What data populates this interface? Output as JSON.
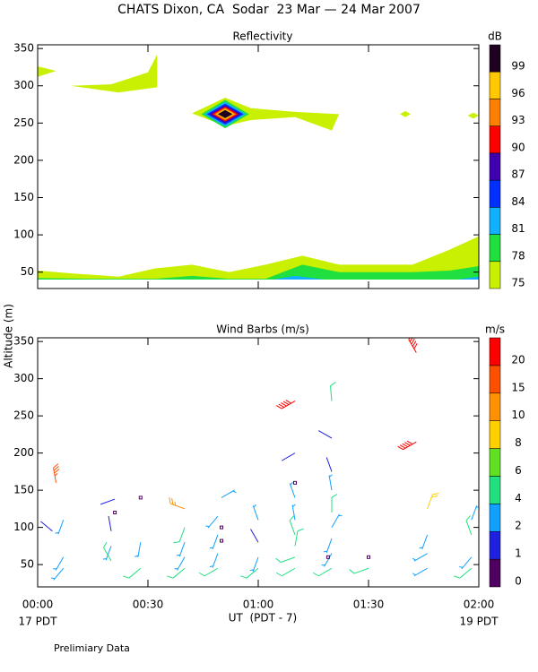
{
  "title": "CHATS Dixon, CA  Sodar  23 Mar — 24 Mar 2007",
  "y_label": "Altitude (m)",
  "x_label": "UT  (PDT - 7)",
  "start_label": "17 PDT",
  "end_label": "19 PDT",
  "footnote": "Prelimiary Data",
  "chart_data": [
    {
      "type": "contour",
      "title": "Reflectivity",
      "colorbar_unit": "dB",
      "levels": [
        75,
        78,
        81,
        84,
        87,
        90,
        93,
        96,
        99
      ],
      "colors": [
        "#c8f000",
        "#20e040",
        "#10b0ff",
        "#0030ff",
        "#4000b0",
        "#ff0000",
        "#ff8000",
        "#ffc800",
        "#200020"
      ],
      "xlim": [
        0,
        120
      ],
      "ylim": [
        28,
        355
      ],
      "xticks": [
        0,
        30,
        60,
        90,
        120
      ],
      "yticks": [
        50,
        100,
        150,
        200,
        250,
        300,
        350
      ],
      "regions": [
        {
          "level": 75,
          "x": [
            0,
            10,
            22,
            32,
            42,
            52,
            62,
            72,
            82,
            92,
            102,
            112,
            120,
            120,
            0
          ],
          "y": [
            52,
            48,
            44,
            55,
            60,
            50,
            60,
            72,
            60,
            60,
            60,
            80,
            98,
            40,
            40
          ]
        },
        {
          "level": 78,
          "x": [
            0,
            15,
            32,
            42,
            52,
            62,
            72,
            82,
            102,
            112,
            120,
            120,
            0
          ],
          "y": [
            42,
            41,
            41,
            45,
            41,
            41,
            60,
            50,
            50,
            52,
            58,
            40,
            40
          ]
        },
        {
          "level": 81,
          "x": [
            64,
            70,
            78
          ],
          "y": [
            40,
            45,
            40
          ]
        },
        {
          "level": 81,
          "x": [
            114,
            120,
            120
          ],
          "y": [
            40,
            44,
            40
          ]
        },
        {
          "level": 75,
          "x": [
            0,
            5,
            0
          ],
          "y": [
            326,
            320,
            312
          ]
        },
        {
          "level": 75,
          "x": [
            9,
            20,
            30,
            32.5,
            32.5,
            22
          ],
          "y": [
            300,
            302,
            318,
            342,
            298,
            291
          ]
        },
        {
          "level": 75,
          "x": [
            42,
            51,
            58,
            70,
            82,
            80,
            70,
            58,
            51
          ],
          "y": [
            263,
            284,
            270,
            265,
            262,
            240,
            258,
            254,
            246
          ]
        },
        {
          "level": 78,
          "x": [
            44.5,
            51,
            57.5,
            51
          ],
          "y": [
            262,
            281,
            262,
            243
          ]
        },
        {
          "level": 81,
          "x": [
            45.3,
            51,
            56.7,
            51
          ],
          "y": [
            262,
            278.5,
            262,
            245.5
          ]
        },
        {
          "level": 84,
          "x": [
            46,
            51,
            56,
            51
          ],
          "y": [
            262,
            276,
            262,
            248
          ]
        },
        {
          "level": 87,
          "x": [
            46.7,
            51,
            55.3,
            51
          ],
          "y": [
            262,
            274,
            262,
            250
          ]
        },
        {
          "level": 90,
          "x": [
            47.4,
            51,
            54.6,
            51
          ],
          "y": [
            262,
            272,
            262,
            252
          ]
        },
        {
          "level": 93,
          "x": [
            48,
            51,
            54,
            51
          ],
          "y": [
            262,
            270.5,
            262,
            253.5
          ]
        },
        {
          "level": 96,
          "x": [
            48.5,
            51,
            53.5,
            51
          ],
          "y": [
            262,
            269,
            262,
            255
          ]
        },
        {
          "level": 99,
          "x": [
            49,
            51,
            53,
            51
          ],
          "y": [
            262,
            267.5,
            262,
            256.5
          ]
        },
        {
          "level": 75,
          "x": [
            98.5,
            100,
            101.5,
            100
          ],
          "y": [
            262,
            266,
            262,
            258
          ]
        },
        {
          "level": 75,
          "x": [
            117,
            118.5,
            120,
            118.5
          ],
          "y": [
            260,
            264,
            260,
            256
          ]
        }
      ]
    },
    {
      "type": "barbs",
      "title": "Wind Barbs (m/s)",
      "colorbar_unit": "m/s",
      "levels": [
        0,
        1,
        2,
        4,
        6,
        8,
        10,
        15,
        20
      ],
      "colors": [
        "#500060",
        "#2020e0",
        "#10a0ff",
        "#20e080",
        "#60e020",
        "#ffd000",
        "#ff9000",
        "#ff5000",
        "#ff0000"
      ],
      "xlim": [
        0,
        120
      ],
      "ylim": [
        20,
        355
      ],
      "xticks": [
        {
          "value": 0,
          "label": "00:00"
        },
        {
          "value": 30,
          "label": "00:30"
        },
        {
          "value": 60,
          "label": "01:00"
        },
        {
          "value": 90,
          "label": "01:30"
        },
        {
          "value": 120,
          "label": "02:00"
        }
      ],
      "yticks": [
        50,
        100,
        150,
        200,
        250,
        300,
        350
      ],
      "x": [
        5,
        4,
        7,
        7,
        7,
        21,
        21,
        20,
        20,
        20,
        28,
        28,
        28,
        40,
        40,
        40,
        40,
        40,
        50,
        50,
        50,
        49,
        49,
        49,
        49,
        60,
        60,
        60,
        60,
        70,
        70,
        70,
        70,
        70,
        70,
        70,
        70,
        70,
        80,
        80,
        80,
        80,
        80,
        80,
        80,
        80,
        80,
        79,
        90,
        90,
        103,
        103,
        106,
        106,
        106,
        106,
        118,
        118,
        118,
        118
      ],
      "y": [
        160,
        95,
        110,
        60,
        45,
        138,
        120,
        95,
        75,
        55,
        140,
        80,
        45,
        125,
        100,
        80,
        60,
        45,
        140,
        100,
        82,
        115,
        90,
        65,
        45,
        110,
        80,
        60,
        45,
        270,
        200,
        160,
        140,
        110,
        90,
        75,
        60,
        45,
        270,
        220,
        175,
        150,
        120,
        100,
        85,
        65,
        45,
        60,
        60,
        45,
        335,
        215,
        125,
        90,
        65,
        45,
        110,
        90,
        60,
        45
      ],
      "speed": [
        15,
        1.5,
        2,
        3,
        3,
        1.5,
        0,
        1,
        2,
        4,
        0,
        2,
        4,
        10,
        4,
        2,
        3,
        4,
        2,
        0,
        0,
        3,
        3,
        3,
        4,
        2,
        1.5,
        3,
        4,
        20,
        1,
        0,
        3,
        3,
        4,
        4,
        4,
        4,
        4,
        1,
        1,
        2,
        4,
        3,
        3,
        3,
        4,
        0,
        0,
        4,
        20,
        20,
        8,
        2,
        3,
        3,
        2,
        4,
        3,
        4
      ],
      "direction": [
        350,
        310,
        200,
        210,
        220,
        250,
        0,
        350,
        200,
        330,
        0,
        190,
        230,
        290,
        200,
        200,
        210,
        230,
        60,
        0,
        0,
        220,
        200,
        200,
        240,
        340,
        330,
        200,
        230,
        240,
        240,
        0,
        340,
        350,
        340,
        10,
        250,
        240,
        355,
        300,
        340,
        350,
        0,
        30,
        200,
        210,
        240,
        0,
        0,
        250,
        330,
        240,
        20,
        200,
        240,
        240,
        20,
        340,
        220,
        230
      ]
    }
  ]
}
